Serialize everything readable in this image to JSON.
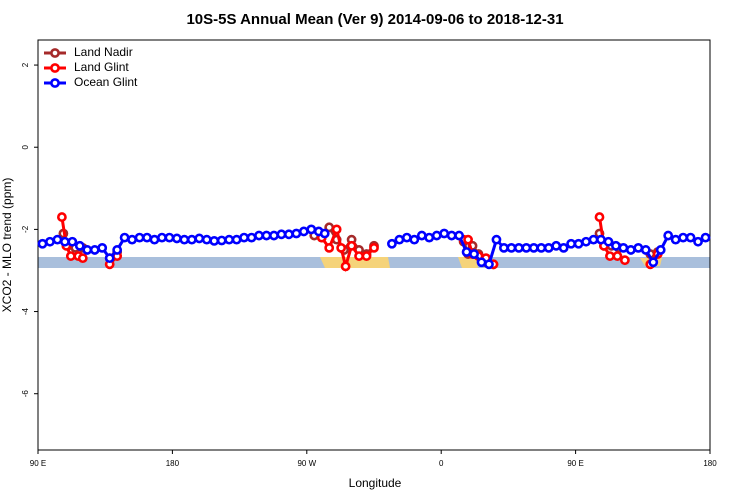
{
  "chart_data": {
    "type": "line",
    "title": "10S-5S Annual Mean (Ver 9)   2014-09-06 to 2018-12-31",
    "xlabel": "Longitude",
    "ylabel": "XCO2 - MLO trend (ppm)",
    "xlim": [
      90,
      540
    ],
    "ylim": [
      -7.37,
      2.61
    ],
    "xticks": [
      {
        "value": 90,
        "label": "90 E"
      },
      {
        "value": 180,
        "label": "180"
      },
      {
        "value": 270,
        "label": "90 W"
      },
      {
        "value": 360,
        "label": "0"
      },
      {
        "value": 450,
        "label": "90 E"
      },
      {
        "value": 540,
        "label": "180"
      }
    ],
    "yticks": [
      -6,
      -4,
      -2,
      0,
      2
    ],
    "legend": "top-left",
    "series": [
      {
        "name": "Land Nadir",
        "color": "#a52a2a",
        "x": [
          107,
          110,
          115,
          120,
          130,
          138,
          143,
          200,
          275,
          280,
          285,
          290,
          295,
          300,
          305,
          310,
          315,
          340,
          375,
          378,
          381,
          385,
          390,
          395,
          430,
          466,
          469,
          474,
          479,
          490,
          500,
          505
        ],
        "values": [
          -2.1,
          -2.4,
          -2.45,
          -2.45,
          null,
          -2.7,
          -2.55,
          null,
          -2.15,
          -2.2,
          -1.95,
          -2.25,
          -2.5,
          -2.25,
          -2.5,
          -2.6,
          -2.4,
          null,
          -2.3,
          -2.6,
          -2.4,
          -2.6,
          -2.8,
          -2.85,
          null,
          -2.1,
          -2.4,
          -2.4,
          -2.45,
          null,
          -2.6,
          -2.55
        ]
      },
      {
        "name": "Land Glint",
        "color": "#ff0000",
        "x": [
          106,
          109,
          112,
          117,
          120,
          130,
          138,
          143,
          200,
          280,
          285,
          290,
          293,
          296,
          300,
          305,
          310,
          315,
          340,
          375,
          378,
          381,
          385,
          390,
          395,
          430,
          466,
          469,
          473,
          478,
          483,
          490,
          500,
          505
        ],
        "values": [
          -1.7,
          -2.4,
          -2.65,
          -2.65,
          -2.7,
          null,
          -2.85,
          -2.65,
          null,
          -2.2,
          -2.45,
          -2.0,
          -2.45,
          -2.9,
          -2.4,
          -2.65,
          -2.65,
          -2.45,
          null,
          -2.25,
          -2.25,
          -2.6,
          -2.65,
          -2.7,
          -2.85,
          null,
          -1.7,
          -2.4,
          -2.65,
          -2.65,
          -2.75,
          null,
          -2.85,
          -2.6
        ]
      },
      {
        "name": "Ocean Glint",
        "color": "#0000ff",
        "x": [
          93,
          98,
          103,
          108,
          113,
          118,
          123,
          128,
          133,
          138,
          143,
          148,
          153,
          158,
          163,
          168,
          173,
          178,
          183,
          188,
          193,
          198,
          203,
          208,
          213,
          218,
          223,
          228,
          233,
          238,
          243,
          248,
          253,
          258,
          263,
          268,
          273,
          278,
          282,
          305,
          327,
          332,
          337,
          342,
          347,
          352,
          357,
          362,
          367,
          372,
          377,
          382,
          387,
          392,
          397,
          402,
          407,
          412,
          417,
          422,
          427,
          432,
          437,
          442,
          447,
          452,
          457,
          462,
          467,
          472,
          477,
          482,
          487,
          492,
          497,
          502,
          507,
          512,
          517,
          522,
          527,
          532,
          537
        ],
        "values": [
          -2.35,
          -2.3,
          -2.25,
          -2.3,
          -2.3,
          -2.4,
          -2.5,
          -2.5,
          -2.45,
          -2.7,
          -2.5,
          -2.2,
          -2.25,
          -2.2,
          -2.2,
          -2.25,
          -2.2,
          -2.2,
          -2.22,
          -2.25,
          -2.25,
          -2.22,
          -2.25,
          -2.28,
          -2.27,
          -2.25,
          -2.25,
          -2.2,
          -2.2,
          -2.15,
          -2.15,
          -2.15,
          -2.12,
          -2.12,
          -2.1,
          -2.05,
          -2.0,
          -2.05,
          -2.1,
          null,
          -2.35,
          -2.25,
          -2.2,
          -2.25,
          -2.15,
          -2.2,
          -2.15,
          -2.1,
          -2.15,
          -2.15,
          -2.55,
          -2.6,
          -2.8,
          -2.85,
          -2.25,
          -2.45,
          -2.45,
          -2.45,
          -2.45,
          -2.45,
          -2.45,
          -2.45,
          -2.4,
          -2.45,
          -2.35,
          -2.35,
          -2.3,
          -2.25,
          -2.25,
          -2.3,
          -2.4,
          -2.45,
          -2.5,
          -2.45,
          -2.5,
          -2.8,
          -2.5,
          -2.15,
          -2.25,
          -2.2,
          -2.2,
          -2.3,
          -2.2
        ]
      }
    ]
  }
}
